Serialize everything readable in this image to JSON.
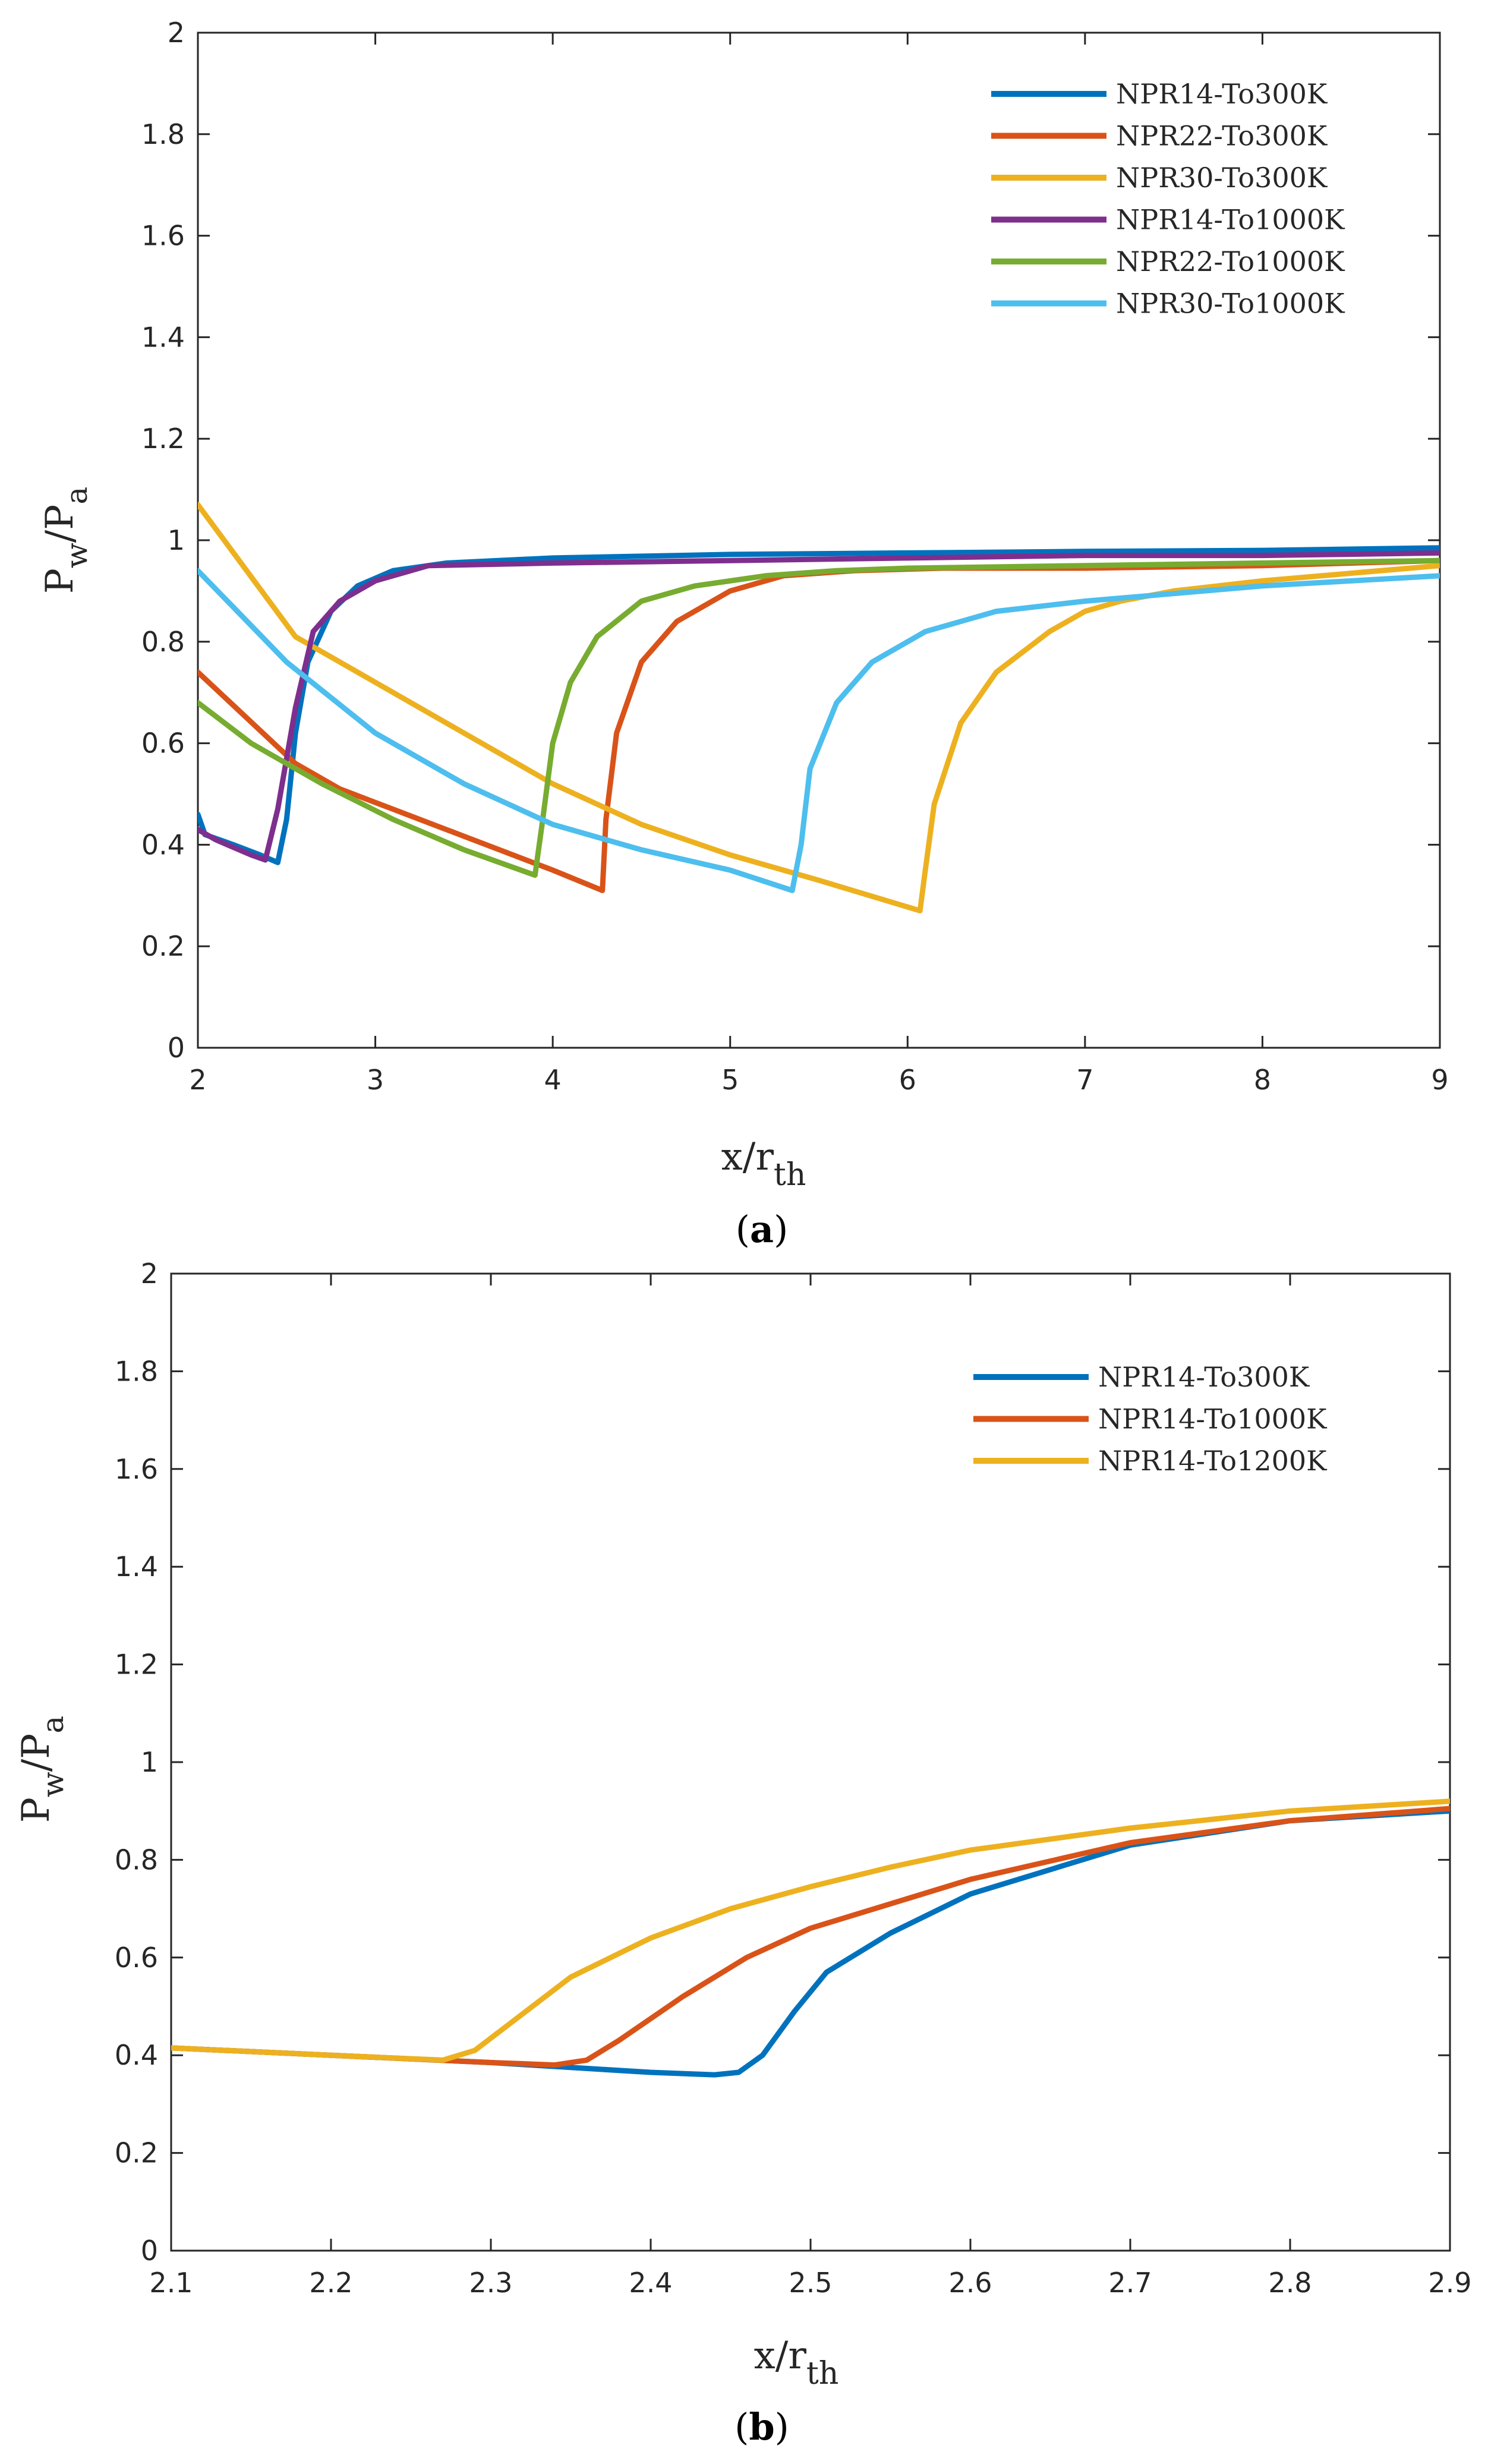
{
  "chart_data": [
    {
      "type": "line",
      "panel_label": "a",
      "xlabel_main": "x/r",
      "xlabel_sub": "th",
      "ylabel_main": "P",
      "ylabel_sub1": "w",
      "ylabel_mid": "/P",
      "ylabel_sub2": "a",
      "xlim": [
        2,
        9
      ],
      "ylim": [
        0,
        2
      ],
      "xticks": [
        2,
        3,
        4,
        5,
        6,
        7,
        8,
        9
      ],
      "yticks": [
        0,
        0.2,
        0.4,
        0.6,
        0.8,
        1,
        1.2,
        1.4,
        1.6,
        1.8,
        2
      ],
      "grid": false,
      "legend_position": "top-right",
      "series": [
        {
          "name": "NPR14-To300K",
          "color": "#0072BD",
          "x": [
            2.0,
            2.04,
            2.2,
            2.35,
            2.45,
            2.5,
            2.55,
            2.62,
            2.75,
            2.9,
            3.1,
            3.4,
            4.0,
            5.0,
            6.0,
            7.0,
            8.0,
            9.0
          ],
          "y": [
            0.46,
            0.42,
            0.4,
            0.38,
            0.365,
            0.45,
            0.62,
            0.76,
            0.86,
            0.91,
            0.94,
            0.955,
            0.965,
            0.972,
            0.975,
            0.978,
            0.98,
            0.985
          ]
        },
        {
          "name": "NPR22-To300K",
          "color": "#D95319",
          "x": [
            2.0,
            2.55,
            2.8,
            3.1,
            3.4,
            3.7,
            4.0,
            4.28,
            4.3,
            4.36,
            4.5,
            4.7,
            5.0,
            5.3,
            5.7,
            6.2,
            7.0,
            8.0,
            9.0
          ],
          "y": [
            0.74,
            0.56,
            0.51,
            0.47,
            0.43,
            0.39,
            0.35,
            0.31,
            0.45,
            0.62,
            0.76,
            0.84,
            0.9,
            0.93,
            0.94,
            0.945,
            0.945,
            0.95,
            0.96
          ]
        },
        {
          "name": "NPR30-To300K",
          "color": "#EDB120",
          "x": [
            2.0,
            2.55,
            3.0,
            3.5,
            4.0,
            4.5,
            5.0,
            5.5,
            6.07,
            6.1,
            6.15,
            6.3,
            6.5,
            6.8,
            7.0,
            7.2,
            7.5,
            8.0,
            9.0
          ],
          "y": [
            1.07,
            0.81,
            0.72,
            0.62,
            0.52,
            0.44,
            0.38,
            0.33,
            0.27,
            0.35,
            0.48,
            0.64,
            0.74,
            0.82,
            0.86,
            0.88,
            0.9,
            0.92,
            0.95
          ]
        },
        {
          "name": "NPR14-To1000K",
          "color": "#7E2F8E",
          "x": [
            2.0,
            2.1,
            2.2,
            2.3,
            2.38,
            2.45,
            2.55,
            2.65,
            2.8,
            3.0,
            3.3,
            4.0,
            5.0,
            6.0,
            7.0,
            8.0,
            9.0
          ],
          "y": [
            0.43,
            0.41,
            0.395,
            0.38,
            0.37,
            0.47,
            0.67,
            0.82,
            0.88,
            0.92,
            0.95,
            0.955,
            0.96,
            0.965,
            0.97,
            0.97,
            0.975
          ]
        },
        {
          "name": "NPR22-To1000K",
          "color": "#77AC30",
          "x": [
            2.0,
            2.3,
            2.7,
            3.1,
            3.5,
            3.9,
            3.94,
            4.0,
            4.1,
            4.25,
            4.5,
            4.8,
            5.2,
            5.6,
            6.0,
            7.0,
            8.0,
            9.0
          ],
          "y": [
            0.68,
            0.6,
            0.52,
            0.45,
            0.39,
            0.34,
            0.44,
            0.6,
            0.72,
            0.81,
            0.88,
            0.91,
            0.93,
            0.94,
            0.945,
            0.95,
            0.955,
            0.96
          ]
        },
        {
          "name": "NPR30-To1000K",
          "color": "#4DBEEE",
          "x": [
            2.0,
            2.5,
            3.0,
            3.5,
            4.0,
            4.5,
            5.0,
            5.35,
            5.4,
            5.45,
            5.6,
            5.8,
            6.1,
            6.5,
            7.0,
            8.0,
            9.0
          ],
          "y": [
            0.94,
            0.76,
            0.62,
            0.52,
            0.44,
            0.39,
            0.35,
            0.31,
            0.4,
            0.55,
            0.68,
            0.76,
            0.82,
            0.86,
            0.88,
            0.91,
            0.93
          ]
        }
      ]
    },
    {
      "type": "line",
      "panel_label": "b",
      "xlabel_main": "x/r",
      "xlabel_sub": "th",
      "ylabel_main": "P",
      "ylabel_sub1": "w",
      "ylabel_mid": "/P",
      "ylabel_sub2": "a",
      "xlim": [
        2.1,
        2.9
      ],
      "ylim": [
        0,
        2
      ],
      "xticks": [
        2.1,
        2.2,
        2.3,
        2.4,
        2.5,
        2.6,
        2.7,
        2.8,
        2.9
      ],
      "yticks": [
        0,
        0.2,
        0.4,
        0.6,
        0.8,
        1,
        1.2,
        1.4,
        1.6,
        1.8,
        2
      ],
      "grid": false,
      "legend_position": "top-right",
      "series": [
        {
          "name": "NPR14-To300K",
          "color": "#0072BD",
          "x": [
            2.1,
            2.2,
            2.3,
            2.35,
            2.4,
            2.44,
            2.455,
            2.47,
            2.49,
            2.51,
            2.55,
            2.6,
            2.7,
            2.8,
            2.9
          ],
          "y": [
            0.415,
            0.4,
            0.385,
            0.375,
            0.365,
            0.36,
            0.365,
            0.4,
            0.49,
            0.57,
            0.65,
            0.73,
            0.83,
            0.88,
            0.9
          ]
        },
        {
          "name": "NPR14-To1000K",
          "color": "#D95319",
          "x": [
            2.1,
            2.2,
            2.3,
            2.34,
            2.36,
            2.38,
            2.42,
            2.46,
            2.5,
            2.55,
            2.6,
            2.7,
            2.8,
            2.9
          ],
          "y": [
            0.415,
            0.4,
            0.385,
            0.38,
            0.39,
            0.43,
            0.52,
            0.6,
            0.66,
            0.71,
            0.76,
            0.835,
            0.88,
            0.905
          ]
        },
        {
          "name": "NPR14-To1200K",
          "color": "#EDB120",
          "x": [
            2.1,
            2.2,
            2.27,
            2.29,
            2.31,
            2.35,
            2.4,
            2.45,
            2.5,
            2.55,
            2.6,
            2.7,
            2.8,
            2.9
          ],
          "y": [
            0.415,
            0.4,
            0.39,
            0.41,
            0.46,
            0.56,
            0.64,
            0.7,
            0.745,
            0.785,
            0.82,
            0.865,
            0.9,
            0.92
          ]
        }
      ]
    }
  ]
}
